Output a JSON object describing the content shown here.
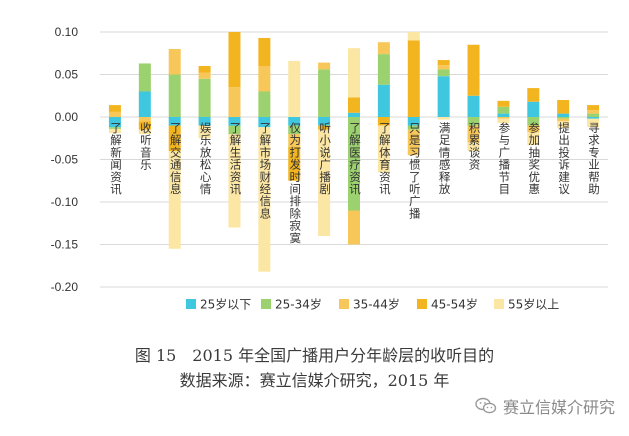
{
  "chart_data": {
    "type": "bar",
    "stacking": "diverging",
    "title": "",
    "xlabel": "",
    "ylabel": "",
    "ylim": [
      -0.2,
      0.1
    ],
    "yticks": [
      "0.10",
      "0.05",
      "0.00",
      "-0.05",
      "-0.10",
      "-0.15",
      "-0.20"
    ],
    "grid": true,
    "legend_position": "bottom",
    "categories": [
      "了解新闻资讯",
      "收听音乐",
      "了解交通信息",
      "娱乐放松心情",
      "了解生活资讯",
      "了解市场财经信息",
      "仅为打发时间排除寂寞",
      "听小说广播剧",
      "了解医疗资讯",
      "了解体育资讯",
      "只是习惯了听广播",
      "满足情感释放",
      "积累谈资",
      "参与广播节目",
      "参加抽奖优惠",
      "提出投诉建议",
      "寻求专业帮助"
    ],
    "series": [
      {
        "name": "25岁以下",
        "color": "#3fc7e0",
        "values": [
          -0.012,
          0.03,
          -0.01,
          -0.01,
          -0.01,
          -0.012,
          -0.01,
          -0.01,
          0.005,
          0.038,
          -0.01,
          0.048,
          0.025,
          0.004,
          0.018,
          0.004,
          -0.002
        ]
      },
      {
        "name": "25-34岁",
        "color": "#9bd16f",
        "values": [
          -0.002,
          0.033,
          0.05,
          0.045,
          -0.01,
          0.03,
          -0.01,
          0.056,
          -0.11,
          0.036,
          -0.005,
          0.008,
          -0.01,
          0.008,
          -0.01,
          -0.002,
          0.004
        ]
      },
      {
        "name": "35-44岁",
        "color": "#f7c75a",
        "values": [
          0.006,
          -0.005,
          0.03,
          0.007,
          0.035,
          0.03,
          -0.015,
          0.008,
          -0.04,
          0.014,
          -0.03,
          0.005,
          -0.02,
          -0.002,
          -0.008,
          -0.003,
          0.004
        ]
      },
      {
        "name": "45-54岁",
        "color": "#f3b51f",
        "values": [
          0.008,
          -0.01,
          -0.03,
          0.008,
          0.065,
          0.033,
          -0.04,
          -0.005,
          0.018,
          -0.01,
          0.09,
          0.006,
          0.06,
          0.007,
          0.016,
          0.016,
          0.006
        ]
      },
      {
        "name": "55岁以上",
        "color": "#fbe6a3",
        "values": [
          -0.005,
          -0.005,
          -0.115,
          -0.015,
          -0.11,
          -0.17,
          0.066,
          -0.125,
          0.058,
          -0.055,
          0.01,
          -0.003,
          -0.01,
          -0.005,
          -0.015,
          -0.008,
          -0.01
        ]
      }
    ]
  },
  "caption": {
    "line1": "图 15　2015 年全国广播用户分年龄层的收听目的",
    "line2": "数据来源：赛立信媒介研究，2015 年"
  },
  "watermark": {
    "text": "赛立信媒介研究",
    "icon": "wechat-icon"
  }
}
